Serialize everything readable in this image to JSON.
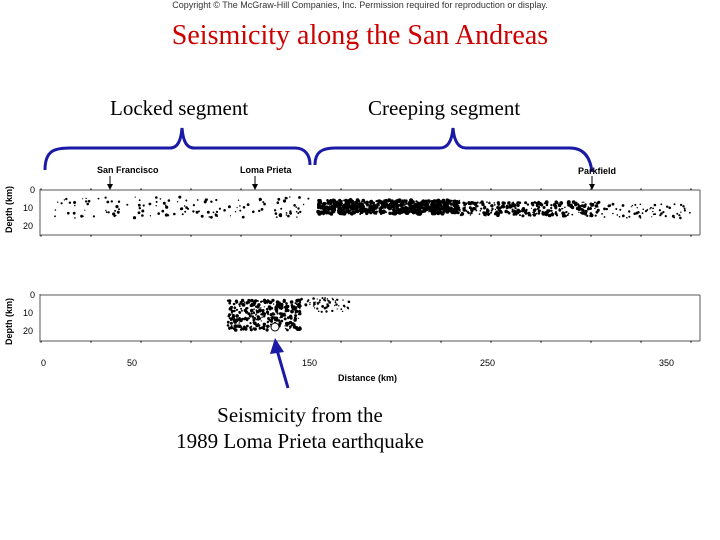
{
  "copyright": "Copyright © The McGraw-Hill Companies, Inc. Permission required for reproduction or display.",
  "title": "Seismicity along the San Andreas",
  "segments": {
    "locked": "Locked segment",
    "creeping": "Creeping segment"
  },
  "places": {
    "san_francisco": "San Francisco",
    "loma_prieta": "Loma Prieta",
    "parkfield": "Parkfield"
  },
  "axes": {
    "depth_label": "Depth (km)",
    "depth_ticks": [
      "0",
      "10",
      "20"
    ],
    "distance_label": "Distance (km)",
    "distance_ticks": [
      "0",
      "50",
      "150",
      "250",
      "350"
    ]
  },
  "caption": {
    "line1": "Seismicity from the",
    "line2": "1989 Loma Prieta earthquake"
  },
  "colors": {
    "title": "#cc0000",
    "bracket": "#1a1aa6",
    "arrow": "#1a1aa6"
  }
}
